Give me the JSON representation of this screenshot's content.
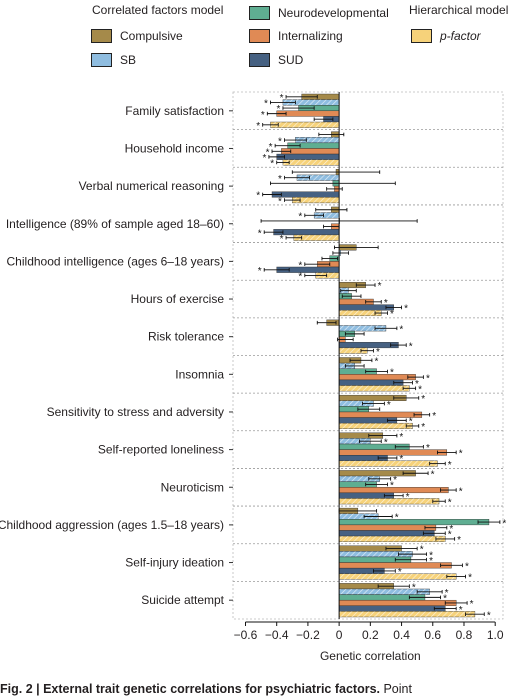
{
  "legend": {
    "correlated_title": "Correlated factors model",
    "hierarchical_title": "Hierarchical model",
    "items": [
      {
        "key": "compulsive",
        "label": "Compulsive",
        "color": "#a58a4a"
      },
      {
        "key": "sb",
        "label": "SB",
        "color": "#8fbde0"
      },
      {
        "key": "neurodevelopmental",
        "label": "Neurodevelopmental",
        "color": "#5fae92"
      },
      {
        "key": "internalizing",
        "label": "Internalizing",
        "color": "#e08a55"
      },
      {
        "key": "sud",
        "label": "SUD",
        "color": "#466182"
      },
      {
        "key": "pfactor",
        "label": "p-factor",
        "color": "#f6d27a"
      }
    ]
  },
  "caption": {
    "bold": "Fig. 2 | External trait genetic correlations for psychiatric factors.",
    "rest": " Point"
  },
  "chart_data": {
    "type": "bar",
    "orientation": "horizontal",
    "xlabel": "Genetic correlation",
    "xlim": [
      -0.68,
      1.05
    ],
    "xticks": [
      -0.6,
      -0.4,
      -0.2,
      0,
      0.2,
      0.4,
      0.6,
      0.8,
      1.0
    ],
    "xtick_labels": [
      "−0.6",
      "−0.4",
      "−0.2",
      "0",
      "0.2",
      "0.4",
      "0.6",
      "0.8",
      "1.0"
    ],
    "significance_marker": "*",
    "categories": [
      "Family satisfaction",
      "Household income",
      "Verbal numerical reasoning",
      "Intelligence (89% of sample aged 18–60)",
      "Childhood intelligence (ages 6–18 years)",
      "Hours of exercise",
      "Risk tolerance",
      "Insomnia",
      "Sensitivity to stress and adversity",
      "Self-reported loneliness",
      "Neuroticism",
      "Childhood aggression (ages 1.5–18 years)",
      "Self-injury ideation",
      "Suicide attempt"
    ],
    "series": [
      {
        "name": "Compulsive",
        "color": "#a58a4a",
        "hatched": false,
        "values": [
          -0.24,
          -0.05,
          -0.02,
          -0.05,
          0.11,
          0.17,
          -0.08,
          0.14,
          0.43,
          0.28,
          0.49,
          0.12,
          0.4,
          0.35
        ],
        "errors": [
          0.1,
          0.08,
          0.28,
          0.1,
          0.14,
          0.06,
          0.06,
          0.07,
          0.08,
          0.09,
          0.08,
          0.12,
          0.1,
          0.1
        ],
        "sig": [
          true,
          false,
          false,
          false,
          false,
          true,
          false,
          true,
          true,
          true,
          true,
          false,
          true,
          true
        ]
      },
      {
        "name": "SB",
        "color": "#8fbde0",
        "hatched": true,
        "values": [
          -0.36,
          -0.28,
          -0.27,
          -0.16,
          0.01,
          0.06,
          0.3,
          0.1,
          0.22,
          0.2,
          0.26,
          0.25,
          0.47,
          0.58
        ],
        "errors": [
          0.08,
          0.07,
          0.08,
          0.06,
          0.05,
          0.05,
          0.07,
          0.06,
          0.07,
          0.07,
          0.07,
          0.09,
          0.09,
          0.08
        ],
        "sig": [
          true,
          true,
          true,
          true,
          false,
          false,
          true,
          false,
          true,
          true,
          true,
          true,
          true,
          true
        ]
      },
      {
        "name": "Neurodevelopmental",
        "color": "#5fae92",
        "hatched": false,
        "values": [
          -0.26,
          -0.33,
          -0.04,
          0.0,
          -0.06,
          0.08,
          0.1,
          0.24,
          0.19,
          0.45,
          0.24,
          0.96,
          0.46,
          0.55
        ],
        "errors": [
          0.1,
          0.08,
          0.4,
          0.5,
          0.05,
          0.06,
          0.06,
          0.07,
          0.07,
          0.09,
          0.07,
          0.07,
          0.1,
          0.1
        ],
        "sig": [
          true,
          true,
          false,
          false,
          false,
          false,
          false,
          true,
          false,
          true,
          true,
          true,
          true,
          true
        ]
      },
      {
        "name": "Internalizing",
        "color": "#e08a55",
        "hatched": false,
        "values": [
          -0.4,
          -0.37,
          -0.03,
          -0.05,
          -0.14,
          0.22,
          0.04,
          0.49,
          0.53,
          0.69,
          0.7,
          0.62,
          0.72,
          0.75
        ],
        "errors": [
          0.06,
          0.06,
          0.05,
          0.05,
          0.08,
          0.05,
          0.05,
          0.05,
          0.05,
          0.06,
          0.05,
          0.07,
          0.07,
          0.07
        ],
        "sig": [
          true,
          true,
          false,
          false,
          true,
          true,
          false,
          true,
          true,
          true,
          true,
          true,
          true,
          true
        ]
      },
      {
        "name": "SUD",
        "color": "#466182",
        "hatched": false,
        "values": [
          -0.1,
          -0.4,
          -0.43,
          -0.42,
          -0.4,
          0.35,
          0.38,
          0.41,
          0.37,
          0.31,
          0.35,
          0.61,
          0.29,
          0.68
        ],
        "errors": [
          0.06,
          0.05,
          0.06,
          0.06,
          0.08,
          0.05,
          0.05,
          0.06,
          0.06,
          0.06,
          0.06,
          0.07,
          0.07,
          0.07
        ],
        "sig": [
          false,
          true,
          true,
          true,
          true,
          true,
          true,
          true,
          true,
          true,
          true,
          true,
          true,
          true
        ]
      },
      {
        "name": "p-factor",
        "color": "#f6d27a",
        "hatched": true,
        "values": [
          -0.44,
          -0.36,
          -0.3,
          -0.29,
          -0.15,
          0.27,
          0.18,
          0.45,
          0.47,
          0.63,
          0.64,
          0.68,
          0.75,
          0.87
        ],
        "errors": [
          0.05,
          0.04,
          0.05,
          0.05,
          0.07,
          0.04,
          0.04,
          0.04,
          0.04,
          0.05,
          0.04,
          0.06,
          0.06,
          0.06
        ],
        "sig": [
          true,
          true,
          true,
          true,
          true,
          true,
          true,
          true,
          true,
          true,
          true,
          true,
          true,
          true
        ]
      }
    ]
  }
}
